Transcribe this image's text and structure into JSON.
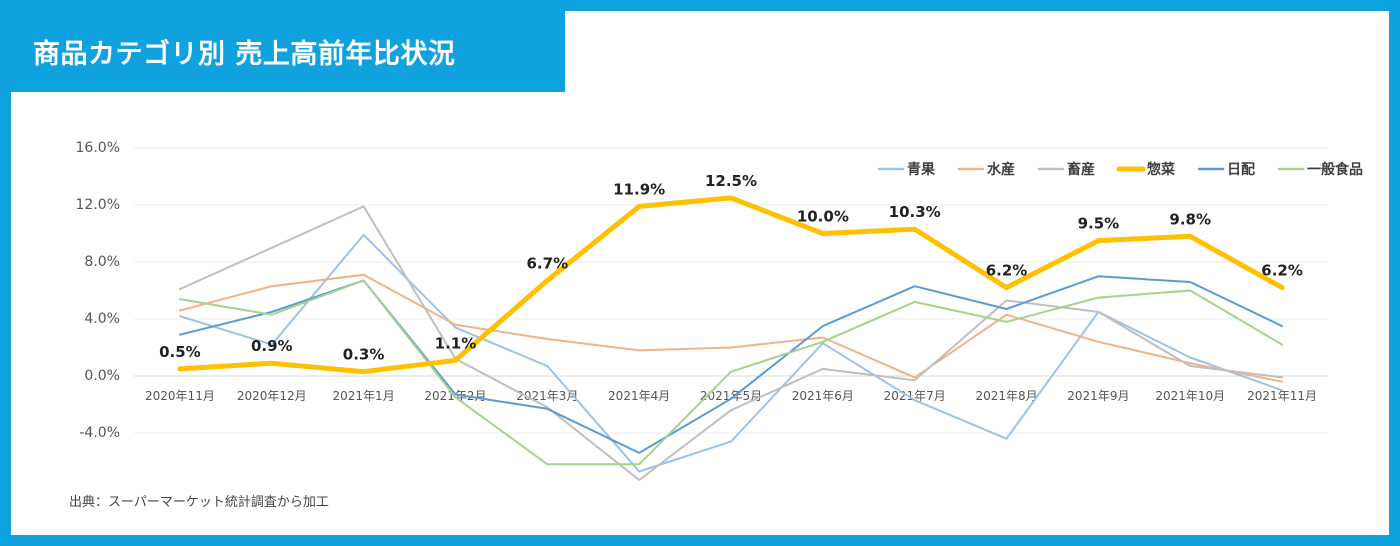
{
  "title": "商品カテゴリ別 売上高前年比状況",
  "source": "出典：スーパーマーケット統計調査から加工",
  "colors": {
    "frame": "#0fa2df",
    "grid": "#eeeeee",
    "axis_text": "#555555",
    "label_text": "#222222"
  },
  "chart_data": {
    "type": "line",
    "title": "商品カテゴリ別 売上高前年比状況",
    "xlabel": "",
    "ylabel": "",
    "ylim": [
      -4,
      16
    ],
    "yticks": [
      -4,
      0,
      4,
      8,
      12,
      16
    ],
    "ytick_labels": [
      "-4.0%",
      "0.0%",
      "4.0%",
      "8.0%",
      "12.0%",
      "16.0%"
    ],
    "categories": [
      "2020年11月",
      "2020年12月",
      "2021年1月",
      "2021年2月",
      "2021年3月",
      "2021年4月",
      "2021年5月",
      "2021年6月",
      "2021年7月",
      "2021年8月",
      "2021年9月",
      "2021年10月",
      "2021年11月"
    ],
    "legend_position": "top-right",
    "series": [
      {
        "name": "青果",
        "color": "#9dc3e6",
        "width": 2,
        "values": [
          4.2,
          2.2,
          9.9,
          3.4,
          0.7,
          -6.7,
          -4.6,
          2.3,
          -1.7,
          -4.4,
          4.5,
          1.3,
          -1.0
        ]
      },
      {
        "name": "水産",
        "color": "#f4b183",
        "width": 2,
        "values": [
          4.6,
          6.3,
          7.1,
          3.6,
          2.6,
          1.8,
          2.0,
          2.7,
          -0.1,
          4.3,
          2.4,
          0.9,
          -0.4
        ]
      },
      {
        "name": "畜産",
        "color": "#bfbfbf",
        "width": 2,
        "values": [
          6.1,
          9.0,
          11.9,
          1.2,
          -2.2,
          -7.3,
          -2.4,
          0.5,
          -0.3,
          5.3,
          4.5,
          0.7,
          -0.1
        ]
      },
      {
        "name": "惣菜",
        "color": "#ffc000",
        "width": 5,
        "values": [
          0.5,
          0.9,
          0.3,
          1.1,
          6.7,
          11.9,
          12.5,
          10.0,
          10.3,
          6.2,
          9.5,
          9.8,
          6.2
        ],
        "labels": [
          "0.5%",
          "0.9%",
          "0.3%",
          "1.1%",
          "6.7%",
          "11.9%",
          "12.5%",
          "10.0%",
          "10.3%",
          "6.2%",
          "9.5%",
          "9.8%",
          "6.2%"
        ]
      },
      {
        "name": "日配",
        "color": "#5b9bd5",
        "width": 2,
        "values": [
          2.9,
          4.5,
          6.7,
          -1.3,
          -2.3,
          -5.4,
          -1.6,
          3.5,
          6.3,
          4.7,
          7.0,
          6.6,
          3.5
        ]
      },
      {
        "name": "一般食品",
        "color": "#a9d18e",
        "width": 2,
        "values": [
          5.4,
          4.3,
          6.7,
          -1.5,
          -6.2,
          -6.2,
          0.3,
          2.4,
          5.2,
          3.8,
          5.5,
          6.0,
          2.2
        ]
      }
    ]
  }
}
